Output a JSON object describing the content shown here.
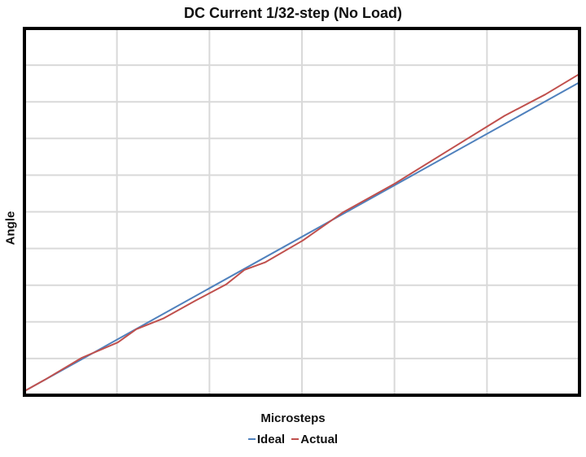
{
  "chart_data": {
    "type": "line",
    "title": "DC Current 1/32-step (No Load)",
    "xlabel": "Microsteps",
    "ylabel": "Angle",
    "xlim": [
      0,
      6
    ],
    "ylim": [
      0,
      10
    ],
    "grid": true,
    "legend_position": "bottom",
    "series": [
      {
        "name": "Ideal",
        "color": "#4f81bd",
        "x": [
          0,
          6
        ],
        "y": [
          0.11,
          8.53
        ]
      },
      {
        "name": "Actual",
        "color": "#c0504d",
        "x": [
          0,
          0.22,
          0.62,
          1.01,
          1.21,
          1.5,
          1.85,
          2.18,
          2.38,
          2.6,
          3.01,
          3.44,
          4.01,
          4.58,
          5.19,
          5.63,
          6
        ],
        "y": [
          0.11,
          0.42,
          1.02,
          1.44,
          1.8,
          2.09,
          2.58,
          3.02,
          3.42,
          3.62,
          4.22,
          4.98,
          5.78,
          6.67,
          7.62,
          8.2,
          8.76
        ]
      }
    ]
  }
}
